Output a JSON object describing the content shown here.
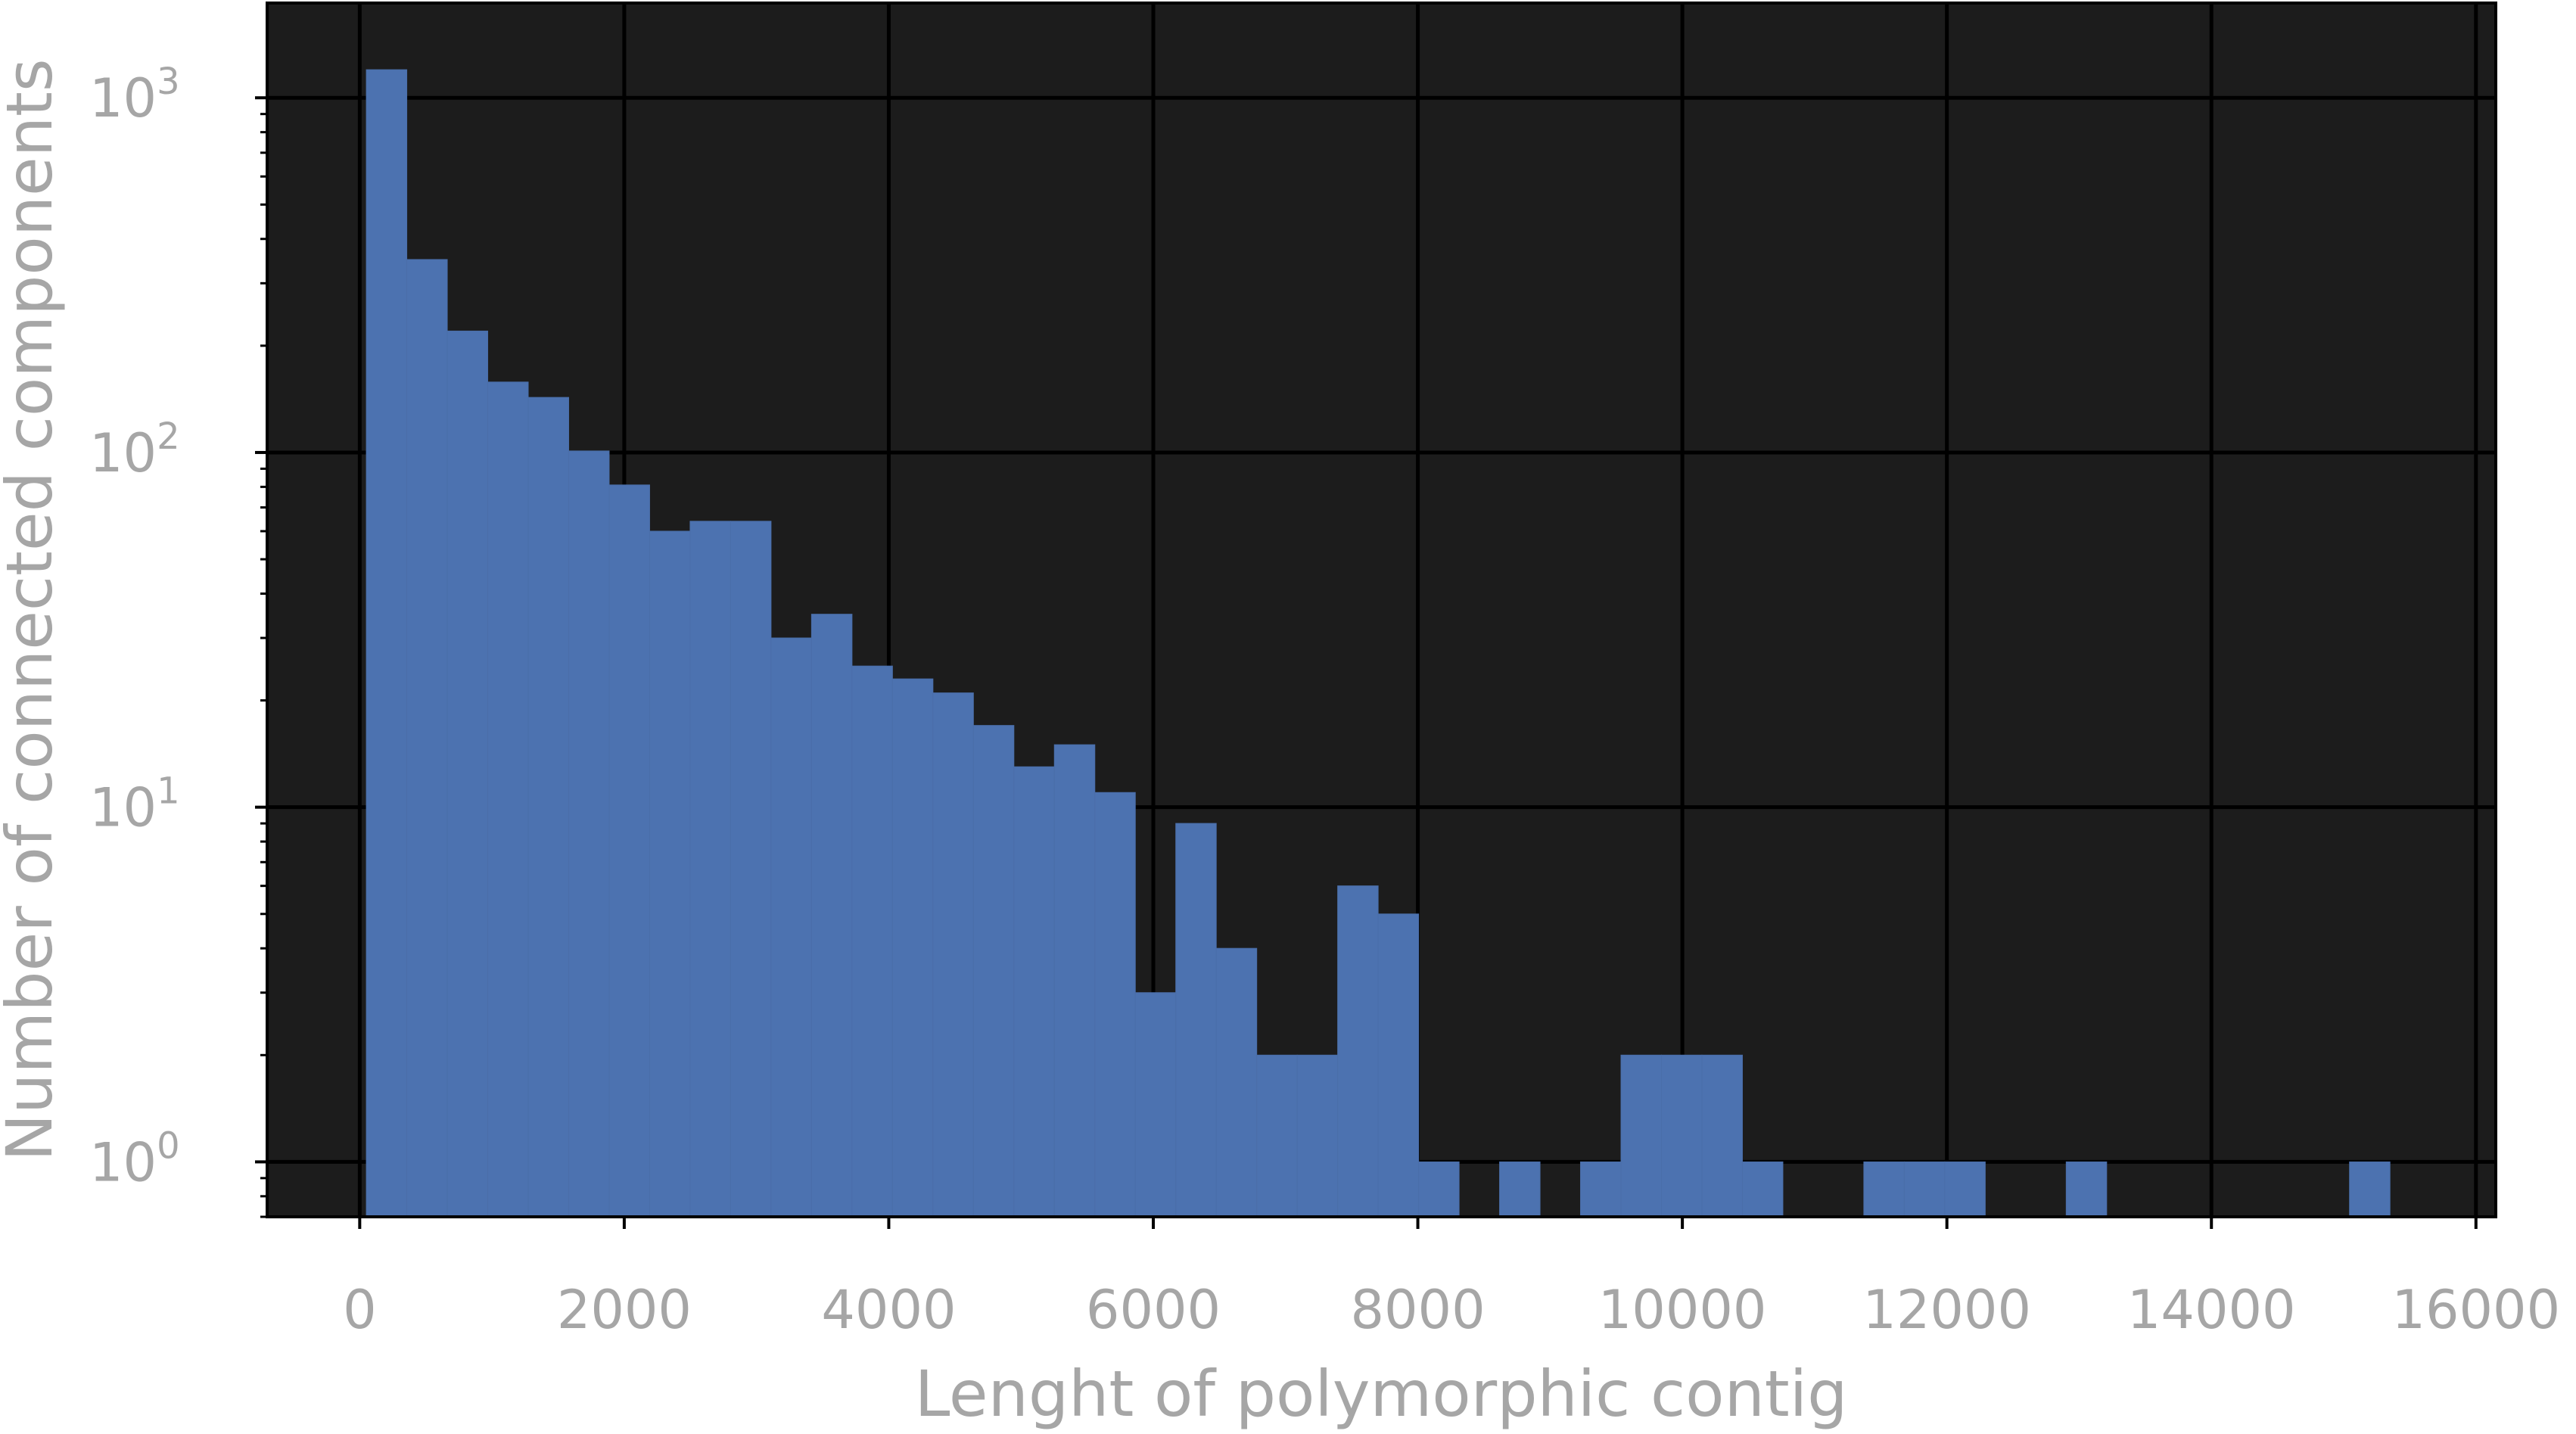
{
  "chart_data": {
    "type": "bar",
    "subtype": "histogram",
    "title": "",
    "xlabel": "Lenght of polymorphic contig",
    "ylabel": "Number of connected components",
    "xlim": [
      -700,
      16150
    ],
    "ylim": [
      0.7,
      1850
    ],
    "yscale": "log",
    "x_ticks": [
      0,
      2000,
      4000,
      6000,
      8000,
      10000,
      12000,
      14000,
      16000
    ],
    "x_tick_labels": [
      "0",
      "2000",
      "4000",
      "6000",
      "8000",
      "10000",
      "12000",
      "14000",
      "16000"
    ],
    "y_ticks": [
      {
        "value": 1,
        "base": "10",
        "exp": "0"
      },
      {
        "value": 10,
        "base": "10",
        "exp": "1"
      },
      {
        "value": 100,
        "base": "10",
        "exp": "2"
      },
      {
        "value": 1000,
        "base": "10",
        "exp": "3"
      }
    ],
    "grid": true,
    "bin_width": 306,
    "bins": [
      {
        "x0": 50,
        "count": 1200
      },
      {
        "x0": 356,
        "count": 350
      },
      {
        "x0": 662,
        "count": 220
      },
      {
        "x0": 968,
        "count": 158
      },
      {
        "x0": 1274,
        "count": 143
      },
      {
        "x0": 1580,
        "count": 101
      },
      {
        "x0": 1886,
        "count": 81
      },
      {
        "x0": 2192,
        "count": 60
      },
      {
        "x0": 2498,
        "count": 64
      },
      {
        "x0": 2804,
        "count": 64
      },
      {
        "x0": 3110,
        "count": 30
      },
      {
        "x0": 3416,
        "count": 35
      },
      {
        "x0": 3722,
        "count": 25
      },
      {
        "x0": 4028,
        "count": 23
      },
      {
        "x0": 4334,
        "count": 21
      },
      {
        "x0": 4640,
        "count": 17
      },
      {
        "x0": 4946,
        "count": 13
      },
      {
        "x0": 5252,
        "count": 15
      },
      {
        "x0": 5558,
        "count": 11
      },
      {
        "x0": 5864,
        "count": 3
      },
      {
        "x0": 6170,
        "count": 9
      },
      {
        "x0": 6476,
        "count": 4
      },
      {
        "x0": 6782,
        "count": 2
      },
      {
        "x0": 7088,
        "count": 2
      },
      {
        "x0": 7394,
        "count": 6
      },
      {
        "x0": 7700,
        "count": 5
      },
      {
        "x0": 8006,
        "count": 1
      },
      {
        "x0": 8618,
        "count": 1
      },
      {
        "x0": 9230,
        "count": 1
      },
      {
        "x0": 9536,
        "count": 2
      },
      {
        "x0": 9842,
        "count": 2
      },
      {
        "x0": 10148,
        "count": 2
      },
      {
        "x0": 10454,
        "count": 1
      },
      {
        "x0": 11372,
        "count": 1
      },
      {
        "x0": 11678,
        "count": 1
      },
      {
        "x0": 11984,
        "count": 1
      },
      {
        "x0": 12902,
        "count": 1
      },
      {
        "x0": 15044,
        "count": 1
      }
    ],
    "colors": {
      "plot_background": "#1c1c1c",
      "bar": "#4c72b0",
      "grid": "#000000",
      "text": "#a6a6a6"
    }
  }
}
